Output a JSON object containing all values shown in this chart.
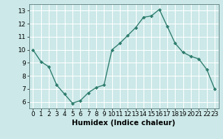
{
  "x": [
    0,
    1,
    2,
    3,
    4,
    5,
    6,
    7,
    8,
    9,
    10,
    11,
    12,
    13,
    14,
    15,
    16,
    17,
    18,
    19,
    20,
    21,
    22,
    23
  ],
  "y": [
    10,
    9.1,
    8.7,
    7.3,
    6.6,
    5.9,
    6.1,
    6.7,
    7.1,
    7.3,
    10.0,
    10.5,
    11.1,
    11.7,
    12.5,
    12.6,
    13.1,
    11.8,
    10.5,
    9.8,
    9.5,
    9.3,
    8.5,
    7.0
  ],
  "line_color": "#2e7d6e",
  "marker_color": "#2e7d6e",
  "bg_color": "#cce8e8",
  "grid_color": "#ffffff",
  "xlabel": "Humidex (Indice chaleur)",
  "ylim": [
    5.5,
    13.5
  ],
  "xlim": [
    -0.5,
    23.5
  ],
  "yticks": [
    6,
    7,
    8,
    9,
    10,
    11,
    12,
    13
  ],
  "xticks": [
    0,
    1,
    2,
    3,
    4,
    5,
    6,
    7,
    8,
    9,
    10,
    11,
    12,
    13,
    14,
    15,
    16,
    17,
    18,
    19,
    20,
    21,
    22,
    23
  ],
  "tick_fontsize": 6.5,
  "xlabel_fontsize": 7.5
}
